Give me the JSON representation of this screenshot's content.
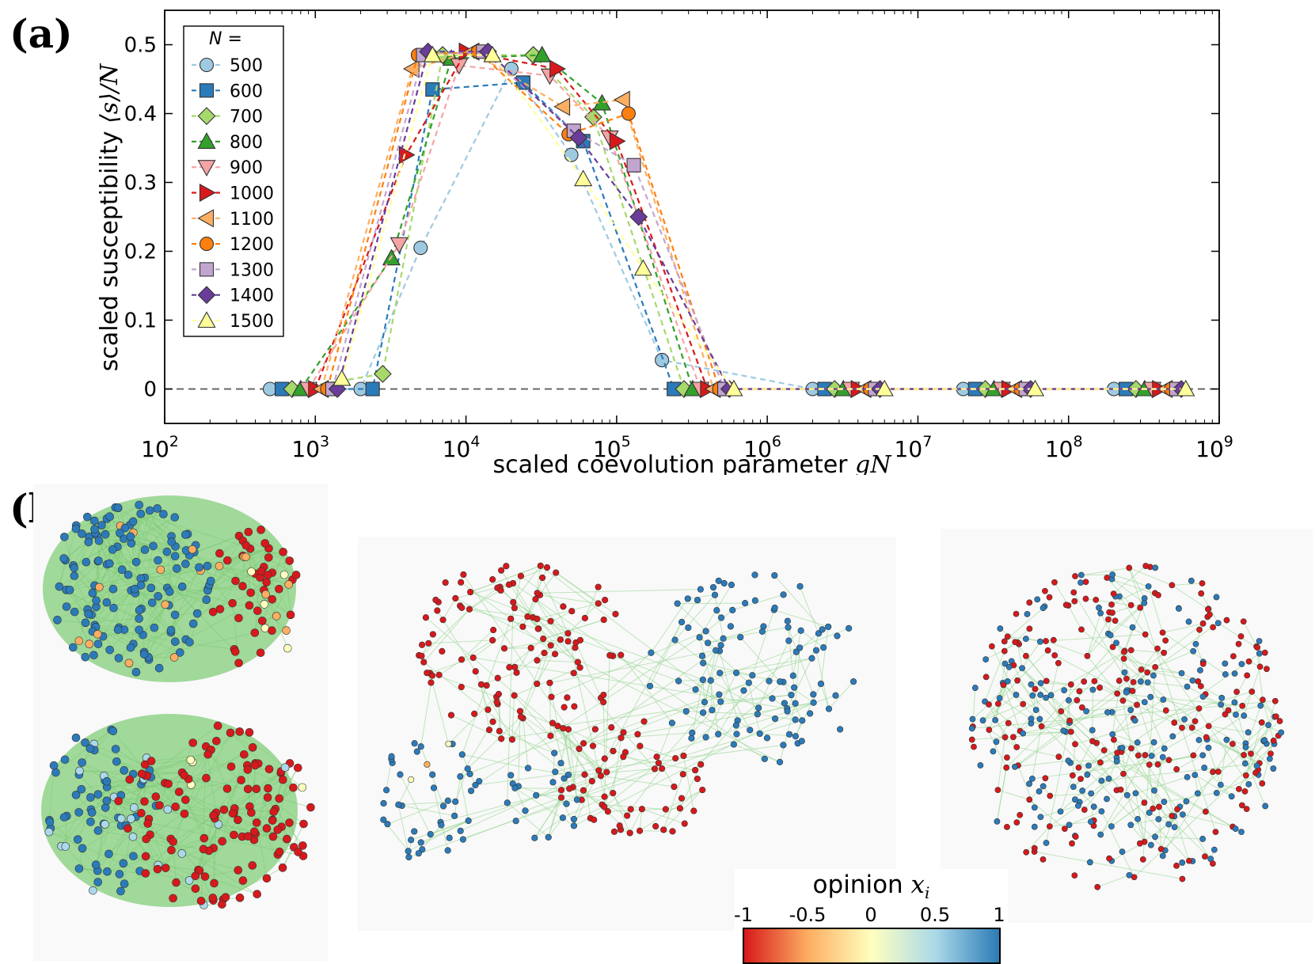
{
  "panel_labels": {
    "a": "(a)",
    "b": "(b)"
  },
  "chart_data": {
    "type": "line",
    "xscale": "log",
    "xlim": [
      100,
      1000000000
    ],
    "ylim": [
      -0.05,
      0.55
    ],
    "xticks": [
      100,
      1000,
      10000,
      100000,
      1000000,
      10000000,
      100000000,
      1000000000
    ],
    "xtick_bases": [
      "10",
      "10",
      "10",
      "10",
      "10",
      "10",
      "10",
      "10"
    ],
    "xtick_exps": [
      "2",
      "3",
      "4",
      "5",
      "6",
      "7",
      "8",
      "9"
    ],
    "yticks": [
      0,
      0.1,
      0.2,
      0.3,
      0.4,
      0.5
    ],
    "ytick_labels": [
      "0",
      "0.1",
      "0.2",
      "0.3",
      "0.4",
      "0.5"
    ],
    "xlabel_text": "scaled coevolution parameter ",
    "xlabel_math": "gN",
    "ylabel_text": "scaled susceptibility ",
    "ylabel_math": "⟨s⟩/N",
    "legend_title": "N =",
    "legend_location": "upper-left",
    "reference_line": {
      "y": 0,
      "style": "dashed"
    },
    "series": [
      {
        "name": "500",
        "color": "#9ecae1",
        "marker": "circle",
        "x": [
          500,
          2000,
          5000,
          20000,
          50000,
          200000,
          2000000,
          20000000,
          200000000
        ],
        "y": [
          0,
          0,
          0.205,
          0.465,
          0.34,
          0.042,
          0,
          0,
          0
        ]
      },
      {
        "name": "600",
        "color": "#2b7bba",
        "marker": "square",
        "x": [
          600,
          2400,
          6000,
          24000,
          60000,
          240000,
          2400000,
          24000000,
          240000000
        ],
        "y": [
          0,
          0,
          0.435,
          0.445,
          0.36,
          0,
          0,
          0,
          0
        ]
      },
      {
        "name": "700",
        "color": "#a6d96a",
        "marker": "diamond",
        "x": [
          700,
          2800,
          7000,
          28000,
          70000,
          280000,
          2800000,
          28000000,
          280000000
        ],
        "y": [
          0,
          0.022,
          0.485,
          0.485,
          0.395,
          0,
          0,
          0,
          0
        ]
      },
      {
        "name": "800",
        "color": "#33a02c",
        "marker": "triangle-up",
        "x": [
          800,
          3200,
          8000,
          32000,
          80000,
          320000,
          3200000,
          32000000,
          320000000
        ],
        "y": [
          0,
          0.19,
          0.48,
          0.485,
          0.415,
          0,
          0,
          0,
          0
        ]
      },
      {
        "name": "900",
        "color": "#f4a4a4",
        "marker": "triangle-down",
        "x": [
          900,
          3600,
          9000,
          36000,
          90000,
          360000,
          3600000,
          36000000,
          360000000
        ],
        "y": [
          0,
          0.21,
          0.47,
          0.455,
          0.365,
          0,
          0,
          0,
          0
        ]
      },
      {
        "name": "1000",
        "color": "#d7191c",
        "marker": "triangle-right",
        "x": [
          1000,
          4000,
          10000,
          40000,
          100000,
          400000,
          4000000,
          40000000,
          400000000
        ],
        "y": [
          0,
          0.34,
          0.49,
          0.465,
          0.36,
          0,
          0,
          0,
          0
        ]
      },
      {
        "name": "1100",
        "color": "#fdae61",
        "marker": "triangle-left",
        "x": [
          1100,
          4400,
          11000,
          44000,
          110000,
          440000,
          4400000,
          44000000,
          440000000
        ],
        "y": [
          0,
          0.465,
          0.49,
          0.41,
          0.42,
          0,
          0,
          0,
          0
        ]
      },
      {
        "name": "1200",
        "color": "#ff7f0e",
        "marker": "circle",
        "x": [
          1200,
          4800,
          12000,
          48000,
          120000,
          480000,
          4800000,
          48000000,
          480000000
        ],
        "y": [
          0,
          0.485,
          0.49,
          0.37,
          0.4,
          0,
          0,
          0,
          0
        ]
      },
      {
        "name": "1300",
        "color": "#c2a5cf",
        "marker": "square",
        "x": [
          1300,
          5200,
          13000,
          52000,
          130000,
          520000,
          5200000,
          52000000,
          520000000
        ],
        "y": [
          0,
          0.485,
          0.49,
          0.375,
          0.325,
          0,
          0,
          0,
          0
        ]
      },
      {
        "name": "1400",
        "color": "#6a3d9a",
        "marker": "diamond",
        "x": [
          1400,
          5600,
          14000,
          56000,
          140000,
          560000,
          5600000,
          56000000,
          560000000
        ],
        "y": [
          0,
          0.49,
          0.49,
          0.365,
          0.25,
          0,
          0,
          0,
          0
        ]
      },
      {
        "name": "1500",
        "color": "#ffff99",
        "marker": "triangle-up",
        "x": [
          1500,
          6000,
          15000,
          60000,
          150000,
          600000,
          6000000,
          60000000,
          600000000
        ],
        "y": [
          0.015,
          0.485,
          0.485,
          0.305,
          0.175,
          0,
          0,
          0,
          0
        ]
      }
    ]
  },
  "networks": [
    {
      "name": "network-1a",
      "nodes": 200,
      "palette": [
        "#2b7bba",
        "#d7191c",
        "#fdae61",
        "#ffffbf"
      ],
      "weights": [
        0.62,
        0.26,
        0.08,
        0.04
      ]
    },
    {
      "name": "network-1b",
      "nodes": 200,
      "palette": [
        "#d7191c",
        "#2b7bba",
        "#abd9e9",
        "#ffffbf"
      ],
      "weights": [
        0.62,
        0.28,
        0.07,
        0.03
      ]
    },
    {
      "name": "network-2",
      "nodes": 320,
      "palette": [
        "#d7191c",
        "#2b7bba",
        "#ffffbf",
        "#fdae61"
      ],
      "weights": [
        0.5,
        0.48,
        0.01,
        0.01
      ]
    },
    {
      "name": "network-3",
      "nodes": 420,
      "palette": [
        "#d7191c",
        "#2b7bba"
      ],
      "weights": [
        0.5,
        0.5
      ]
    }
  ],
  "colorbar": {
    "label_text": "opinion ",
    "label_math": "x",
    "label_sub": "i",
    "tick_labels": [
      "-1",
      "-0.5",
      "0",
      "0.5",
      "1"
    ],
    "colors": [
      "#d7191c",
      "#fdae61",
      "#ffffbf",
      "#abd9e9",
      "#2c7bb6"
    ]
  }
}
